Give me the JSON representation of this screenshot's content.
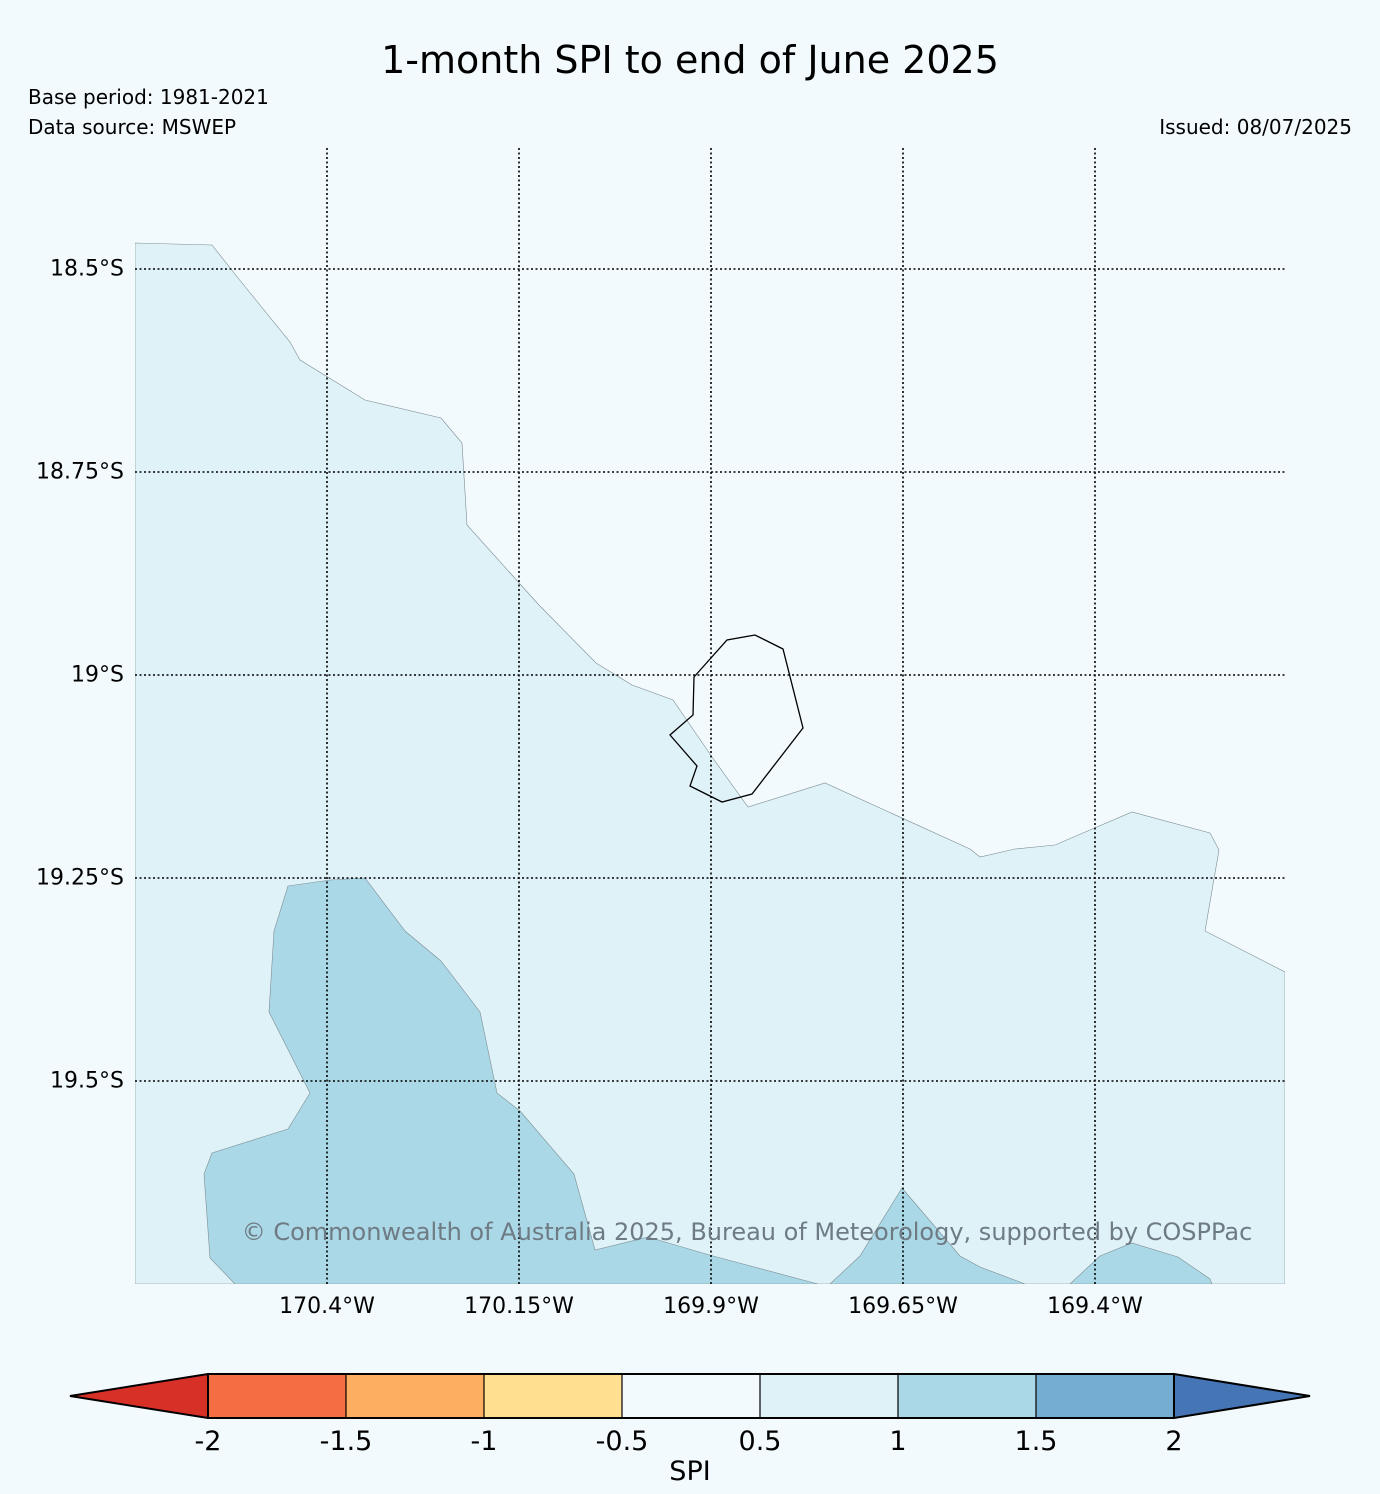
{
  "title": "1-month SPI to end of June 2025",
  "base_period": "Base period: 1981-2021",
  "data_source": "Data source: MSWEP",
  "issued": "Issued: 08/07/2025",
  "copyright": "© Commonwealth of Australia 2025, Bureau of Meteorology, supported by COSPPac",
  "map": {
    "lat_ticks": [
      "18.5°S",
      "18.75°S",
      "19°S",
      "19.25°S",
      "19.5°S"
    ],
    "lon_ticks": [
      "170.4°W",
      "170.15°W",
      "169.9°W",
      "169.65°W",
      "169.4°W"
    ],
    "grid": true,
    "grid_style": "dotted",
    "background_color": "#f2fafd",
    "spi_fill_colors": {
      "0.5 to 1": "#dff2f8",
      "1 to 1.5": "#abd8e6"
    },
    "outline": "Niue coastline"
  },
  "colorbar": {
    "label": "SPI",
    "ticks": [
      "-2",
      "-1.5",
      "-1",
      "-0.5",
      "0.5",
      "1",
      "1.5",
      "2"
    ],
    "bins": [
      {
        "range": "< -2",
        "color": "#d73027"
      },
      {
        "range": "-2 to -1.5",
        "color": "#f46d43"
      },
      {
        "range": "-1.5 to -1",
        "color": "#fdae61"
      },
      {
        "range": "-1 to -0.5",
        "color": "#fee090"
      },
      {
        "range": "-0.5 to 0.5",
        "color": "#f2fafd"
      },
      {
        "range": "0.5 to 1",
        "color": "#dff2f8"
      },
      {
        "range": "1 to 1.5",
        "color": "#abd8e6"
      },
      {
        "range": "1.5 to 2",
        "color": "#74add1"
      },
      {
        "range": "> 2",
        "color": "#4575b4"
      }
    ]
  }
}
